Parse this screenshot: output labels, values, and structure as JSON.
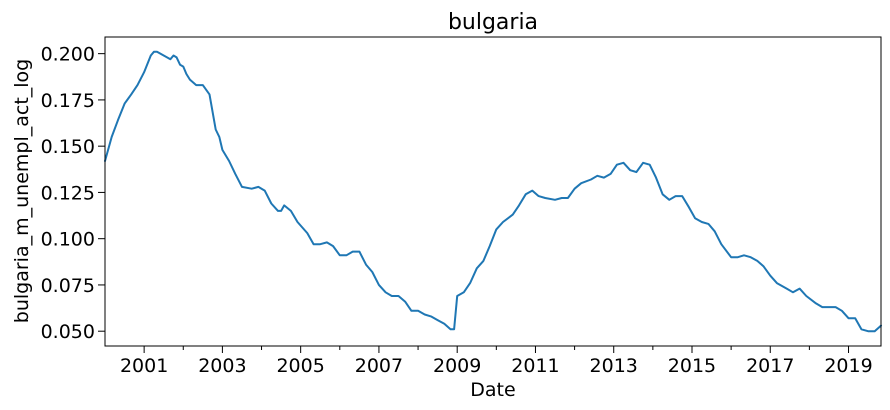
{
  "chart_data": {
    "type": "line",
    "title": "bulgaria",
    "xlabel": "Date",
    "ylabel": "bulgaria_m_unempl_act_log",
    "xlim": [
      2000.0,
      2019.83
    ],
    "ylim": [
      0.042,
      0.209
    ],
    "x_ticks": [
      2001,
      2003,
      2005,
      2007,
      2009,
      2011,
      2013,
      2015,
      2017,
      2019
    ],
    "x_tick_labels": [
      "2001",
      "2003",
      "2005",
      "2007",
      "2009",
      "2011",
      "2013",
      "2015",
      "2017",
      "2019"
    ],
    "x_minor_ticks": [
      2002,
      2004,
      2006,
      2008,
      2010,
      2012,
      2014,
      2016,
      2018
    ],
    "y_ticks": [
      0.05,
      0.075,
      0.1,
      0.125,
      0.15,
      0.175,
      0.2
    ],
    "y_tick_labels": [
      "0.050",
      "0.075",
      "0.100",
      "0.125",
      "0.150",
      "0.175",
      "0.200"
    ],
    "grid": false,
    "line_color": "#1f77b4",
    "series": [
      {
        "x": [
          2000.0,
          2000.17,
          2000.33,
          2000.5,
          2000.67,
          2000.83,
          2001.0,
          2001.17,
          2001.25,
          2001.33,
          2001.5,
          2001.67,
          2001.75,
          2001.83,
          2001.92,
          2002.0,
          2002.08,
          2002.17,
          2002.33,
          2002.5,
          2002.67,
          2002.83,
          2002.92,
          2003.0,
          2003.17,
          2003.33,
          2003.5,
          2003.75,
          2003.92,
          2004.08,
          2004.25,
          2004.42,
          2004.5,
          2004.58,
          2004.75,
          2004.92,
          2005.17,
          2005.33,
          2005.5,
          2005.67,
          2005.83,
          2006.0,
          2006.17,
          2006.33,
          2006.5,
          2006.67,
          2006.83,
          2007.0,
          2007.17,
          2007.33,
          2007.5,
          2007.67,
          2007.83,
          2008.0,
          2008.17,
          2008.33,
          2008.5,
          2008.67,
          2008.83,
          2008.92,
          2009.0,
          2009.17,
          2009.33,
          2009.5,
          2009.67,
          2009.83,
          2010.0,
          2010.17,
          2010.42,
          2010.58,
          2010.75,
          2010.92,
          2011.08,
          2011.25,
          2011.5,
          2011.67,
          2011.83,
          2012.0,
          2012.17,
          2012.42,
          2012.58,
          2012.75,
          2012.92,
          2013.08,
          2013.25,
          2013.42,
          2013.58,
          2013.75,
          2013.92,
          2014.08,
          2014.25,
          2014.42,
          2014.58,
          2014.75,
          2014.92,
          2015.08,
          2015.25,
          2015.42,
          2015.58,
          2015.75,
          2016.0,
          2016.17,
          2016.33,
          2016.5,
          2016.67,
          2016.83,
          2017.0,
          2017.17,
          2017.42,
          2017.58,
          2017.75,
          2017.92,
          2018.17,
          2018.33,
          2018.5,
          2018.67,
          2018.83,
          2019.0,
          2019.17,
          2019.33,
          2019.5,
          2019.67,
          2019.83
        ],
        "values": [
          0.142,
          0.155,
          0.164,
          0.173,
          0.178,
          0.183,
          0.19,
          0.199,
          0.201,
          0.201,
          0.199,
          0.197,
          0.199,
          0.198,
          0.194,
          0.193,
          0.189,
          0.186,
          0.183,
          0.183,
          0.178,
          0.159,
          0.155,
          0.148,
          0.142,
          0.135,
          0.128,
          0.127,
          0.128,
          0.126,
          0.119,
          0.115,
          0.115,
          0.118,
          0.115,
          0.109,
          0.103,
          0.097,
          0.097,
          0.098,
          0.096,
          0.091,
          0.091,
          0.093,
          0.093,
          0.086,
          0.082,
          0.075,
          0.071,
          0.069,
          0.069,
          0.066,
          0.061,
          0.061,
          0.059,
          0.058,
          0.056,
          0.054,
          0.051,
          0.051,
          0.069,
          0.071,
          0.076,
          0.084,
          0.088,
          0.096,
          0.105,
          0.109,
          0.113,
          0.118,
          0.124,
          0.126,
          0.123,
          0.122,
          0.121,
          0.122,
          0.122,
          0.127,
          0.13,
          0.132,
          0.134,
          0.133,
          0.135,
          0.14,
          0.141,
          0.137,
          0.136,
          0.141,
          0.14,
          0.133,
          0.124,
          0.121,
          0.123,
          0.123,
          0.117,
          0.111,
          0.109,
          0.108,
          0.104,
          0.097,
          0.09,
          0.09,
          0.091,
          0.09,
          0.088,
          0.085,
          0.08,
          0.076,
          0.073,
          0.071,
          0.073,
          0.069,
          0.065,
          0.063,
          0.063,
          0.063,
          0.061,
          0.057,
          0.057,
          0.051,
          0.05,
          0.05,
          0.053
        ]
      }
    ]
  }
}
